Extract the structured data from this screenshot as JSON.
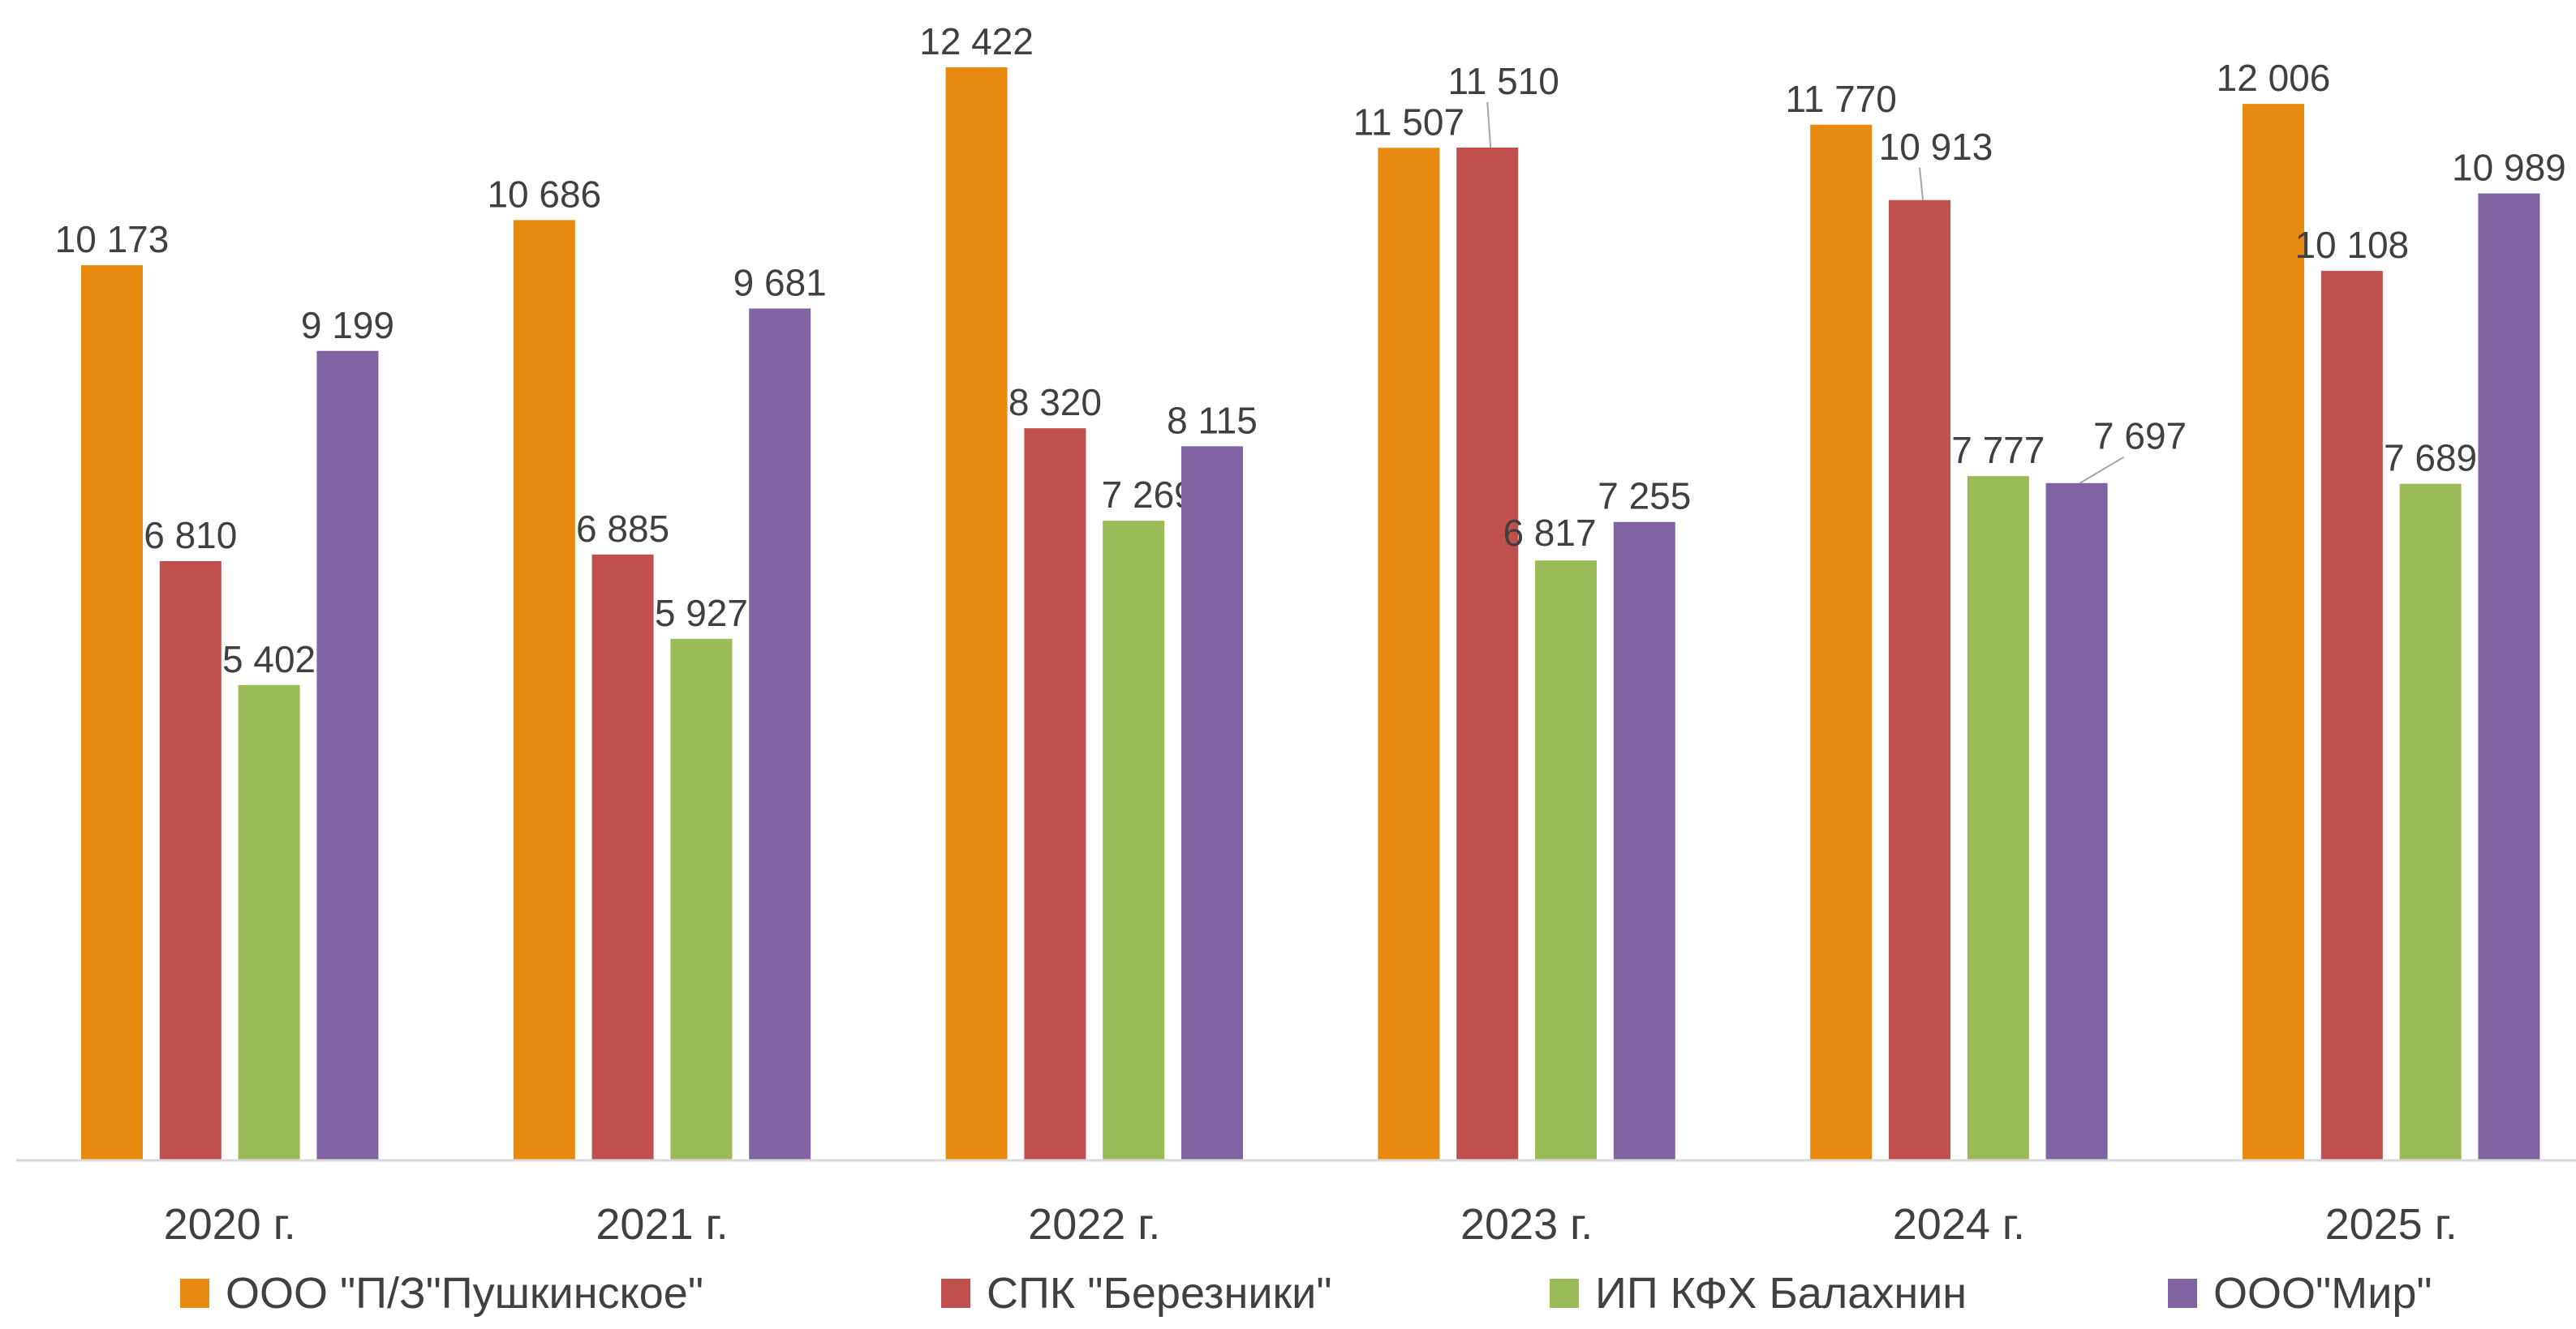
{
  "chart_data": {
    "type": "bar",
    "categories": [
      "2020 г.",
      "2021 г.",
      "2022 г.",
      "2023 г.",
      "2024 г.",
      "2025 г."
    ],
    "series": [
      {
        "name": "ООО \"П/З\"Пушкинское\"",
        "color": "#E88A10",
        "values": [
          10173,
          10686,
          12422,
          11507,
          11770,
          12006
        ],
        "labels": [
          "10 173",
          "10 686",
          "12 422",
          "11 507",
          "11 770",
          "12 006"
        ]
      },
      {
        "name": "СПК \"Березники\"",
        "color": "#C0504D",
        "values": [
          6810,
          6885,
          8320,
          11510,
          10913,
          10108
        ],
        "labels": [
          "6 810",
          "6 885",
          "8 320",
          "11 510",
          "10 913",
          "10 108"
        ]
      },
      {
        "name": "ИП КФХ Балахнин",
        "color": "#9BBB59",
        "values": [
          5402,
          5927,
          7269,
          6817,
          7777,
          7689
        ],
        "labels": [
          "5 402",
          "5 927",
          "7 269",
          "6 817",
          "7 777",
          "7 689"
        ]
      },
      {
        "name": "ООО\"Мир\"",
        "color": "#8064A2",
        "values": [
          9199,
          9681,
          8115,
          7255,
          7697,
          10989
        ],
        "labels": [
          "9 199",
          "9 681",
          "8 115",
          "7 255",
          "7 697",
          "10 989"
        ]
      }
    ],
    "title": "",
    "xlabel": "",
    "ylabel": "",
    "ylim": [
      0,
      12422
    ],
    "grid": false,
    "legend_position": "bottom"
  }
}
